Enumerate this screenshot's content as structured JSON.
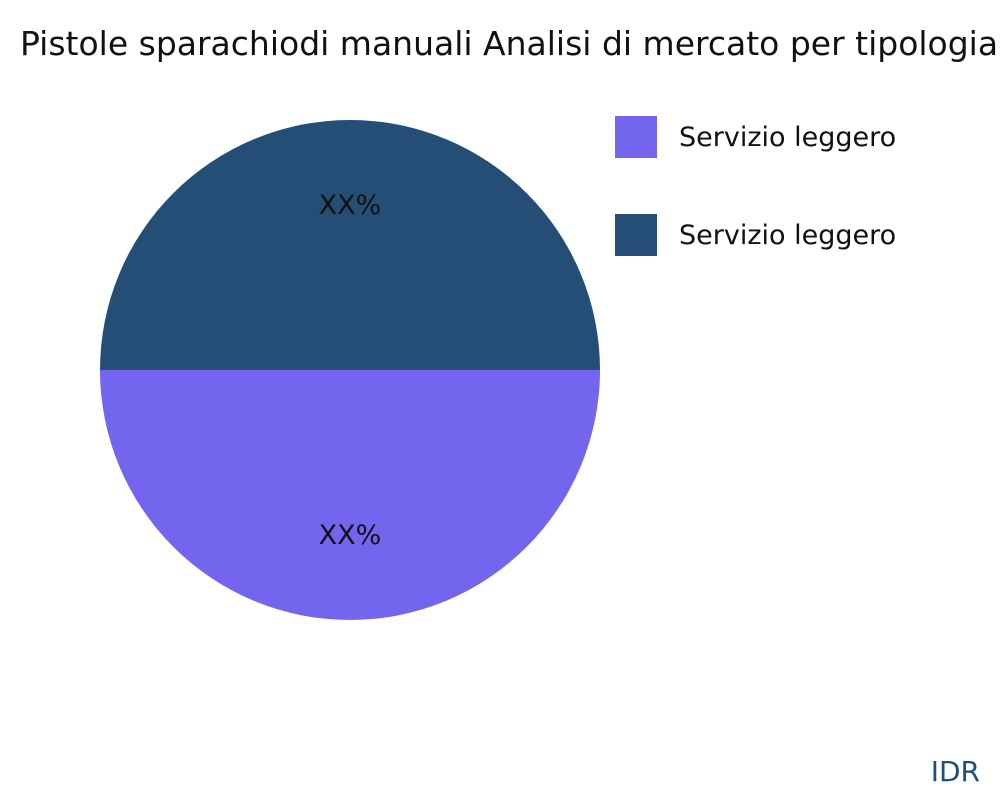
{
  "chart_data": {
    "type": "pie",
    "title": "Pistole sparachiodi manuali Analisi di mercato per tipologia",
    "start_angle_deg": 0,
    "direction": "clockwise",
    "legend_position": "right",
    "slices": [
      {
        "label": "Servizio leggero",
        "value": 50,
        "display_label": "XX%",
        "color": "#7365ee"
      },
      {
        "label": "Servizio leggero",
        "value": 50,
        "display_label": "XX%",
        "color": "#254e77"
      }
    ]
  },
  "footer": {
    "text": "IDR",
    "color": "#1f4e79"
  }
}
